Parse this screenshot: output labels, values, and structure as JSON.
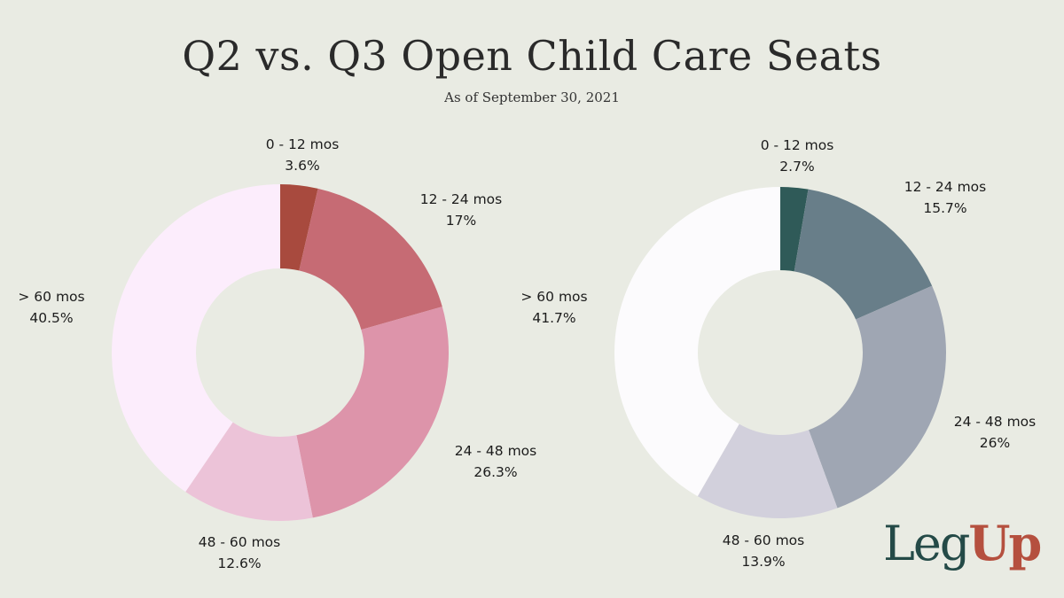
{
  "title": "Q2 vs. Q3 Open Child Care Seats",
  "subtitle": "As of September 30, 2021",
  "logo": {
    "part1": "Leg",
    "part2": "Up"
  },
  "chart_data": [
    {
      "type": "pie",
      "hole": true,
      "slices": [
        {
          "label": "0 - 12 mos",
          "value": 3.6,
          "value_label": "3.6%",
          "color": "#a84a3e"
        },
        {
          "label": "12 - 24 mos",
          "value": 17,
          "value_label": "17%",
          "color": "#c66b74"
        },
        {
          "label": "24 - 48 mos",
          "value": 26.3,
          "value_label": "26.3%",
          "color": "#dd94aa"
        },
        {
          "label": "48 - 60 mos",
          "value": 12.6,
          "value_label": "12.6%",
          "color": "#ecc3d8"
        },
        {
          "label": "> 60 mos",
          "value": 40.5,
          "value_label": "40.5%",
          "color": "#fcedfc"
        }
      ]
    },
    {
      "type": "pie",
      "hole": true,
      "slices": [
        {
          "label": "0 - 12 mos",
          "value": 2.7,
          "value_label": "2.7%",
          "color": "#2f5a58"
        },
        {
          "label": "12 - 24 mos",
          "value": 15.7,
          "value_label": "15.7%",
          "color": "#687e89"
        },
        {
          "label": "24 - 48 mos",
          "value": 26,
          "value_label": "26%",
          "color": "#9fa6b3"
        },
        {
          "label": "48 - 60 mos",
          "value": 13.9,
          "value_label": "13.9%",
          "color": "#d2d0dc"
        },
        {
          "label": "> 60 mos",
          "value": 41.7,
          "value_label": "41.7%",
          "color": "#fcfbfd"
        }
      ]
    }
  ]
}
